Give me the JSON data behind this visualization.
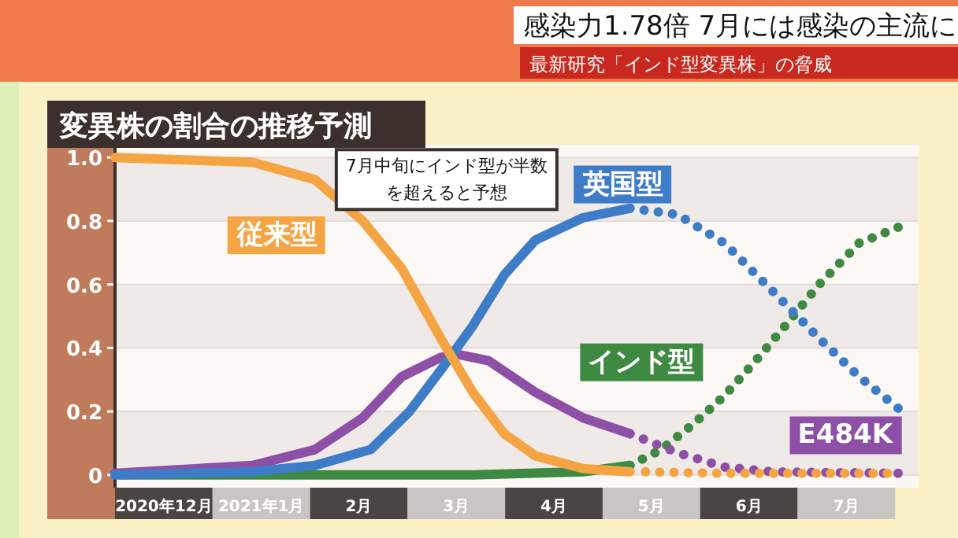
{
  "chart_data": {
    "type": "line",
    "title": "変異株の割合の推移予測",
    "annotations": [
      "感染力1.78倍 7月には感染の主流に",
      "最新研究「インド型変異株」の脅威",
      "7月中旬にインド型が半数を超えると予想"
    ],
    "xlim": [
      0,
      8.24
    ],
    "ylim": [
      -0.04,
      1.04
    ],
    "xticks": [
      {
        "value": 0.5,
        "label": "2020年12月"
      },
      {
        "value": 1.5,
        "label": "2021年1月"
      },
      {
        "value": 2.5,
        "label": "2月"
      },
      {
        "value": 3.5,
        "label": "3月"
      },
      {
        "value": 4.5,
        "label": "4月"
      },
      {
        "value": 5.5,
        "label": "5月"
      },
      {
        "value": 6.5,
        "label": "6月"
      },
      {
        "value": 7.5,
        "label": "7月"
      }
    ],
    "yticks": [
      {
        "value": 0,
        "label": "0"
      },
      0.2,
      0.4,
      0.6,
      0.8,
      {
        "value": 1,
        "label": "1.0"
      }
    ],
    "grid": "y",
    "legend": false,
    "marker": "none",
    "series": [
      {
        "name": "従来型",
        "color": "#f5a443",
        "line_style": "solid",
        "x": [
          0,
          1.41,
          2.05,
          2.54,
          2.94,
          3.34,
          3.67,
          3.99,
          4.31,
          4.8,
          5.28
        ],
        "values": [
          1,
          0.985,
          0.93,
          0.8,
          0.65,
          0.43,
          0.26,
          0.13,
          0.06,
          0.02,
          0.01
        ]
      },
      {
        "color": "#f5a443",
        "line_style": "dotted",
        "x": [
          5.44,
          6.25,
          7.22,
          7.92
        ],
        "values": [
          0.01,
          0.005,
          0.005,
          0.005
        ]
      },
      {
        "name": "英国型",
        "color": "#3f7cc8",
        "line_style": "solid",
        "x": [
          0,
          1.41,
          2.05,
          2.62,
          3.02,
          3.34,
          3.67,
          3.99,
          4.31,
          4.8,
          5.28
        ],
        "values": [
          0,
          0.01,
          0.03,
          0.08,
          0.2,
          0.33,
          0.47,
          0.63,
          0.74,
          0.81,
          0.84
        ]
      },
      {
        "color": "#3f7cc8",
        "line_style": "dotted",
        "x": [
          5.28,
          5.77,
          6.25,
          6.74,
          7.22,
          7.63,
          8.03
        ],
        "values": [
          0.84,
          0.82,
          0.73,
          0.58,
          0.43,
          0.31,
          0.21
        ]
      },
      {
        "name": "E484K",
        "color": "#8e4fa6",
        "line_style": "solid",
        "x": [
          0,
          1.41,
          2.05,
          2.54,
          2.94,
          3.34,
          3.51,
          3.83,
          4.31,
          4.8,
          5.28
        ],
        "values": [
          0.005,
          0.03,
          0.08,
          0.18,
          0.31,
          0.37,
          0.38,
          0.36,
          0.26,
          0.18,
          0.13
        ]
      },
      {
        "color": "#8e4fa6",
        "line_style": "dotted",
        "x": [
          5.28,
          5.77,
          6.25,
          6.74,
          8.03
        ],
        "values": [
          0.13,
          0.07,
          0.025,
          0.01,
          0.005
        ]
      },
      {
        "name": "インド型",
        "color": "#3f8a43",
        "line_style": "solid",
        "x": [
          0,
          3.67,
          4.8,
          5.28
        ],
        "values": [
          0,
          0,
          0.01,
          0.03
        ]
      },
      {
        "color": "#3f8a43",
        "line_style": "dotted",
        "x": [
          5.28,
          5.6,
          5.93,
          6.25,
          6.57,
          6.9,
          7.22,
          7.63,
          8.03
        ],
        "values": [
          0.03,
          0.08,
          0.16,
          0.25,
          0.36,
          0.48,
          0.6,
          0.73,
          0.78
        ]
      }
    ]
  }
}
